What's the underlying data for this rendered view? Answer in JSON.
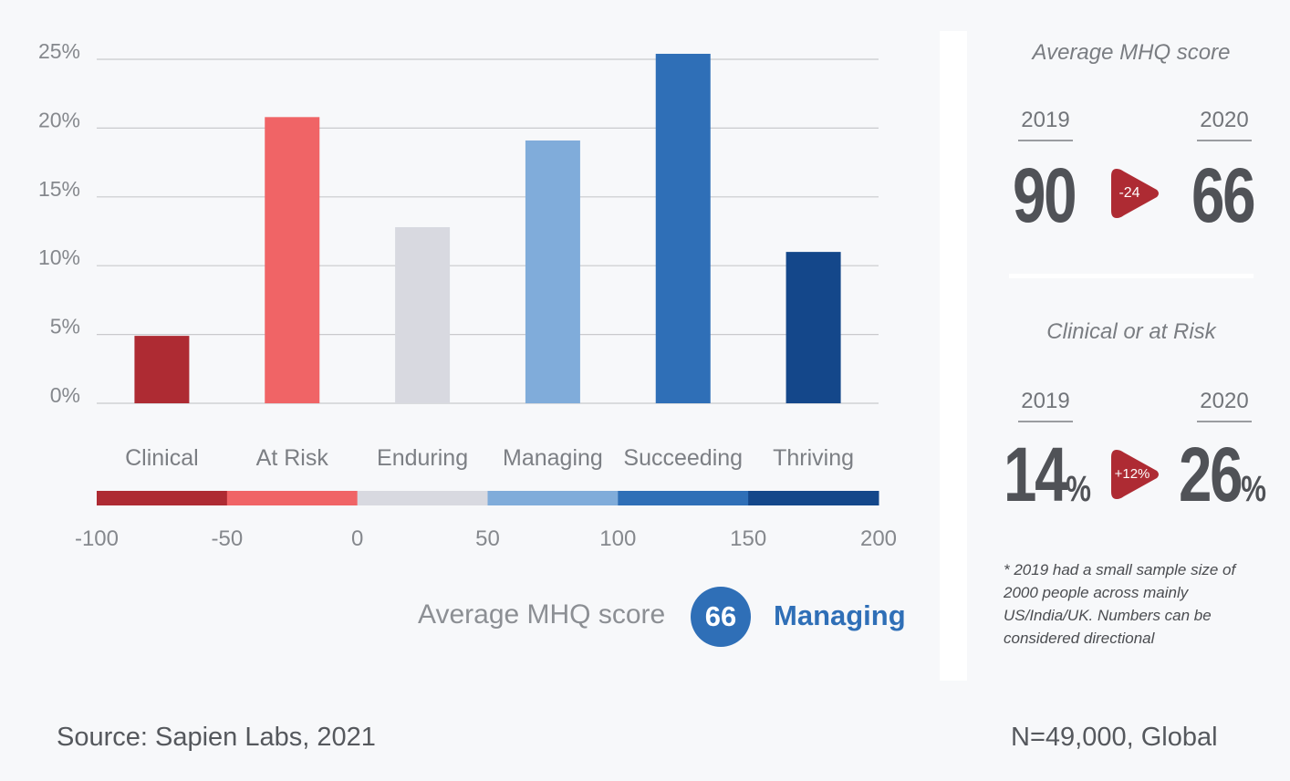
{
  "chart_data": {
    "type": "bar",
    "categories": [
      "Clinical",
      "At Risk",
      "Enduring",
      "Managing",
      "Succeeding",
      "Thriving"
    ],
    "values": [
      4.9,
      20.8,
      12.8,
      19.1,
      25.4,
      11.0
    ],
    "y_ticks": [
      "0%",
      "5%",
      "10%",
      "15%",
      "20%",
      "25%"
    ],
    "ylim": [
      0,
      25
    ],
    "colors": [
      "#ae2b33",
      "#f06466",
      "#d8d9e0",
      "#80acda",
      "#2f6fb7",
      "#14478a"
    ],
    "grid": true,
    "scale": {
      "ticks": [
        "-100",
        "-50",
        "0",
        "50",
        "100",
        "150",
        "200"
      ],
      "range": [
        -100,
        200
      ]
    }
  },
  "average": {
    "label": "Average MHQ score",
    "value": "66",
    "category": "Managing"
  },
  "panel": {
    "mhq_title": "Average MHQ score",
    "mhq_year_from": "2019",
    "mhq_year_to": "2020",
    "mhq_from": "90",
    "mhq_to": "66",
    "mhq_delta": "-24",
    "risk_title": "Clinical or at Risk",
    "risk_year_from": "2019",
    "risk_year_to": "2020",
    "risk_from": "14",
    "risk_to": "26",
    "pct": "%",
    "risk_delta": "+12%",
    "note": "* 2019 had a small sample size of 2000 people across mainly US/India/UK.  Numbers can be considered directional",
    "arrow_color": "#ae2b33"
  },
  "footer": {
    "source": "Source: Sapien Labs, 2021",
    "sample": "N=49,000, Global"
  }
}
